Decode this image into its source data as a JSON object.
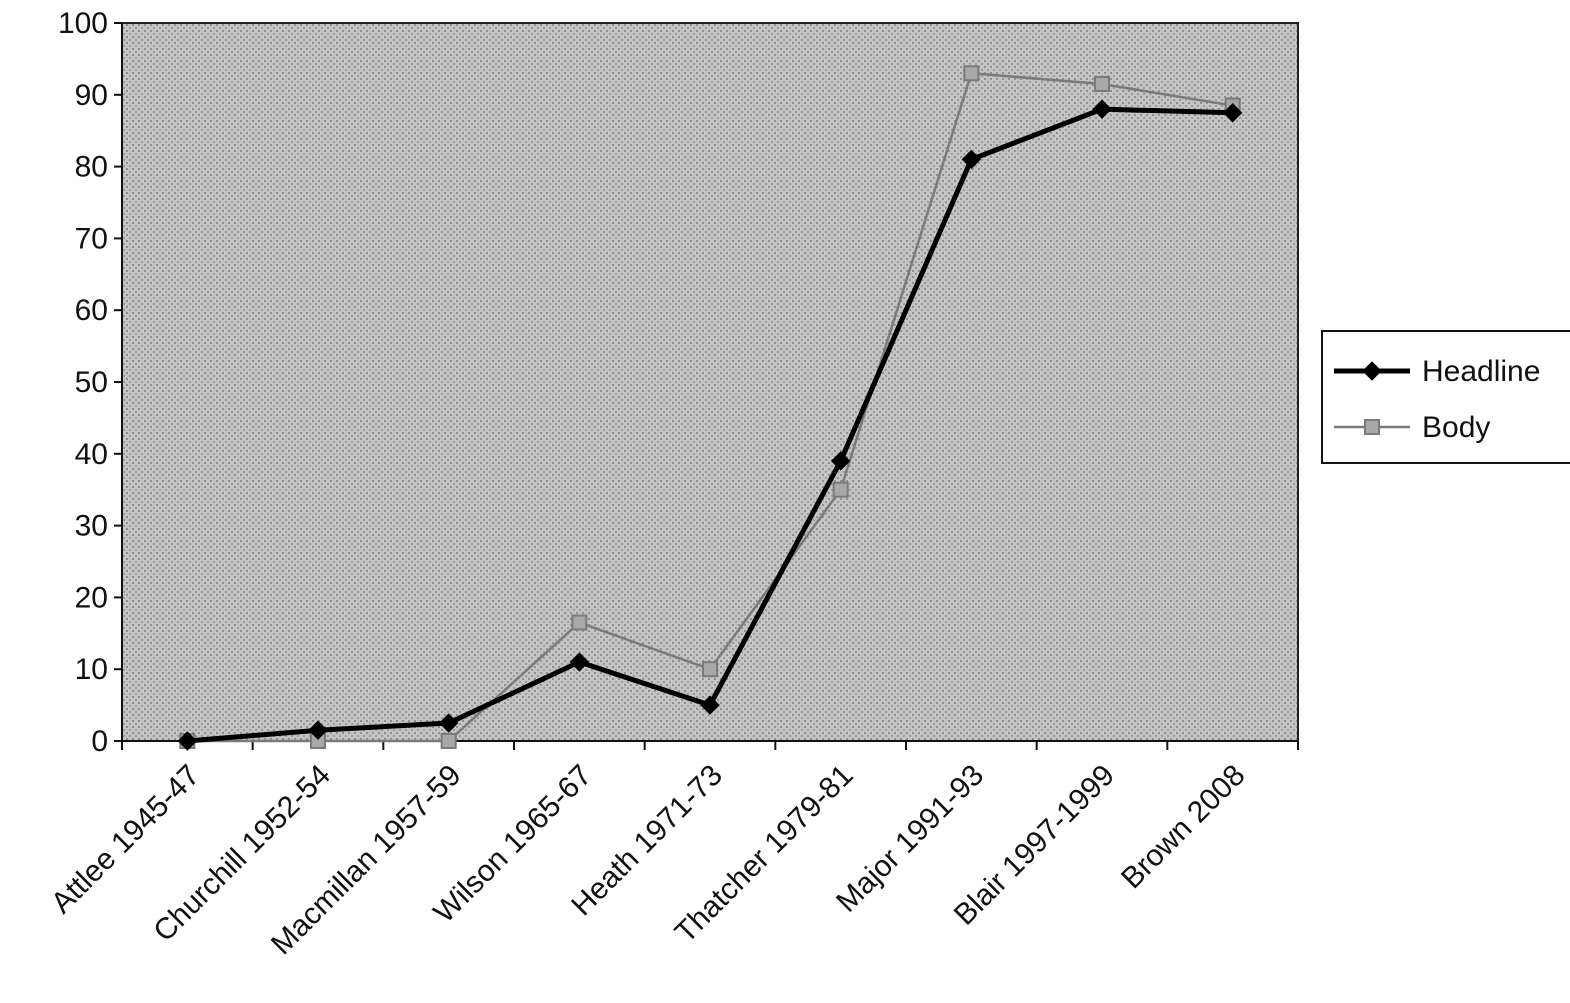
{
  "chart_data": {
    "type": "line",
    "title": "",
    "xlabel": "",
    "ylabel": "",
    "categories": [
      "Attlee 1945-47",
      "Churchill 1952-54",
      "Macmillan 1957-59",
      "Wilson 1965-67",
      "Heath 1971-73",
      "Thatcher 1979-81",
      "Major 1991-93",
      "Blair 1997-1999",
      "Brown 2008"
    ],
    "ylim": [
      0,
      100
    ],
    "yticks": [
      0,
      10,
      20,
      30,
      40,
      50,
      60,
      70,
      80,
      90,
      100
    ],
    "grid": false,
    "legend_position": "right",
    "series": [
      {
        "name": "Headline",
        "values": [
          0,
          1.5,
          2.5,
          11,
          5,
          39,
          81,
          88,
          87.5
        ],
        "color": "#000000",
        "marker": "diamond"
      },
      {
        "name": "Body",
        "values": [
          0,
          0,
          0,
          16.5,
          10,
          35,
          93,
          91.5,
          88.5
        ],
        "color": "#7a7a7a",
        "marker": "square"
      }
    ],
    "plot_background": "#b8b8b8"
  }
}
